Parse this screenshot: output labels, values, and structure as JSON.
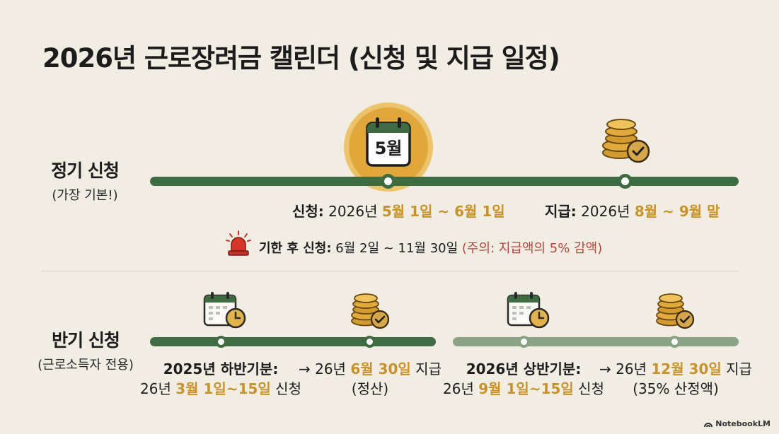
{
  "title": "2026년 근로장려금 캘린더 (신청 및 지급 일정)",
  "regular": {
    "label": "정기 신청",
    "sub": "(가장 기본!)",
    "calendar_text": "5월",
    "apply_prefix": "신청:",
    "apply_year": " 2026년 ",
    "apply_dates": "5월 1일 ~ 6월 1일",
    "pay_prefix": "지급:",
    "pay_year": " 2026년 ",
    "pay_dates": "8월 ~ 9월 말",
    "late_prefix": "기한 후 신청:",
    "late_dates": " 6월 2일 ~ 11월 30일 ",
    "late_warning": "(주의: 지급액의 5% 감액)"
  },
  "semiannual": {
    "label": "반기 신청",
    "sub": "(근로소득자 전용)",
    "first": {
      "period": "2025년 하반기분:",
      "apply_year": "26년 ",
      "apply_dates": "3월 1일~15일",
      "apply_suffix": " 신청",
      "pay_prefix": "→ 26년 ",
      "pay_date": "6월 30일",
      "pay_suffix": " 지급",
      "pay_note": "(정산)"
    },
    "second": {
      "period": "2026년 상반기분:",
      "apply_year": "26년 ",
      "apply_dates": "9월 1일~15일",
      "apply_suffix": " 신청",
      "pay_prefix": "→ 26년 ",
      "pay_date": "12월 30일",
      "pay_suffix": " 지급",
      "pay_note": "(35% 산정액)"
    }
  },
  "branding": "NotebookLM",
  "colors": {
    "track": "#3e6b3f",
    "track_light": "#8aa585",
    "accent_gold": "#c8922a",
    "warning_red": "#b5433c",
    "background": "#f1ede2"
  },
  "icons": [
    "calendar-icon",
    "coin-stack-icon",
    "siren-icon",
    "calendar-clock-icon",
    "check-icon"
  ]
}
